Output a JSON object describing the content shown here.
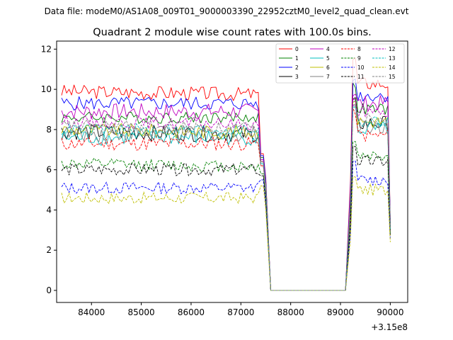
{
  "figure": {
    "suptitle": "Data file: modeM0/AS1A08_009T01_9000003390_22952cztM0_level2_quad_clean.evt"
  },
  "chart_data": {
    "type": "line",
    "title": "Quadrant 2 module wise count rates with 100.0s bins.",
    "xlabel": "",
    "ylabel": "",
    "x_offset_label": "+3.15e8",
    "xlim": [
      83300,
      90350
    ],
    "ylim": [
      -0.6,
      12.4
    ],
    "x_ticks": [
      84000,
      85000,
      86000,
      87000,
      88000,
      89000,
      90000
    ],
    "x_tick_labels": [
      "84000",
      "85000",
      "86000",
      "87000",
      "88000",
      "89000",
      "90000"
    ],
    "y_ticks": [
      0,
      2,
      4,
      6,
      8,
      10,
      12
    ],
    "y_tick_labels": [
      "0",
      "2",
      "4",
      "6",
      "8",
      "10",
      "12"
    ],
    "grid": false,
    "legend": {
      "placement": "top-right",
      "columns": 4
    },
    "segments": [
      {
        "start": 83400,
        "end": 87500
      },
      {
        "start": 87600,
        "end": 89100
      },
      {
        "start": 89200,
        "end": 90000
      }
    ],
    "series": [
      {
        "name": "0",
        "color": "#ff0000",
        "dash": "solid",
        "level": 9.9,
        "tail": 5.6,
        "peak": 11.5,
        "amp": 0.35
      },
      {
        "name": "1",
        "color": "#008000",
        "dash": "solid",
        "level": 8.6,
        "tail": 5.4,
        "peak": 10.2,
        "amp": 0.3
      },
      {
        "name": "2",
        "color": "#0000ff",
        "dash": "solid",
        "level": 9.3,
        "tail": 5.5,
        "peak": 10.5,
        "amp": 0.35
      },
      {
        "name": "3",
        "color": "#000000",
        "dash": "solid",
        "level": 7.9,
        "tail": 5.2,
        "peak": 9.4,
        "amp": 0.4
      },
      {
        "name": "4",
        "color": "#bf00bf",
        "dash": "solid",
        "level": 8.9,
        "tail": 5.3,
        "peak": 9.8,
        "amp": 0.4
      },
      {
        "name": "5",
        "color": "#00bfbf",
        "dash": "solid",
        "level": 7.6,
        "tail": 5.1,
        "peak": 9.3,
        "amp": 0.4
      },
      {
        "name": "6",
        "color": "#bfbf00",
        "dash": "solid",
        "level": 8.0,
        "tail": 5.2,
        "peak": 9.5,
        "amp": 0.35
      },
      {
        "name": "7",
        "color": "#808080",
        "dash": "solid",
        "level": 7.8,
        "tail": 5.0,
        "peak": 9.2,
        "amp": 0.4
      },
      {
        "name": "8",
        "color": "#ff0000",
        "dash": "dashed",
        "level": 7.3,
        "tail": 5.0,
        "peak": 8.9,
        "amp": 0.35
      },
      {
        "name": "9",
        "color": "#008000",
        "dash": "dashed",
        "level": 6.3,
        "tail": 4.6,
        "peak": 7.4,
        "amp": 0.3
      },
      {
        "name": "10",
        "color": "#0000ff",
        "dash": "dashed",
        "level": 5.1,
        "tail": 4.3,
        "peak": 6.3,
        "amp": 0.3
      },
      {
        "name": "11",
        "color": "#000000",
        "dash": "dashed",
        "level": 6.0,
        "tail": 4.5,
        "peak": 7.2,
        "amp": 0.3
      },
      {
        "name": "12",
        "color": "#bf00bf",
        "dash": "dashed",
        "level": 8.4,
        "tail": 5.2,
        "peak": 9.4,
        "amp": 0.3
      },
      {
        "name": "13",
        "color": "#00bfbf",
        "dash": "dashed",
        "level": 8.0,
        "tail": 5.1,
        "peak": 9.2,
        "amp": 0.3
      },
      {
        "name": "14",
        "color": "#bfbf00",
        "dash": "dashed",
        "level": 4.6,
        "tail": 4.0,
        "peak": 5.6,
        "amp": 0.3
      },
      {
        "name": "15",
        "color": "#808080",
        "dash": "dashed",
        "level": 8.2,
        "tail": 5.2,
        "peak": 9.3,
        "amp": 0.3
      }
    ]
  }
}
